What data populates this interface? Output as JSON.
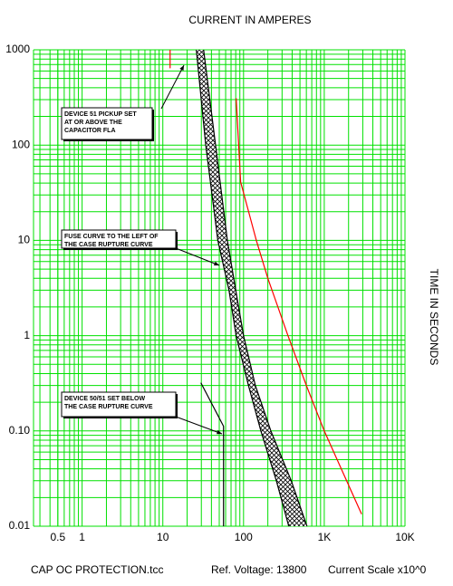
{
  "chart_data": {
    "type": "line",
    "title": "CURRENT IN AMPERES",
    "y_label": "TIME IN SECONDS",
    "xscale": "log",
    "yscale": "log",
    "grid": true,
    "grid_color": "#00e000",
    "xlim": [
      0.25,
      10000
    ],
    "ylim": [
      0.01,
      1000
    ],
    "xticks": [
      0.5,
      1,
      10,
      100,
      {
        "value": 1000,
        "label": "1K"
      },
      {
        "value": 10000,
        "label": "10K"
      }
    ],
    "yticks": [
      0.01,
      {
        "value": 0.1,
        "label": "0.10"
      },
      1,
      10,
      100,
      1000
    ],
    "x_minor_grid": [
      0.3,
      0.4,
      0.5,
      0.6,
      0.7,
      0.8,
      0.9,
      2,
      3,
      4,
      5,
      6,
      7,
      8,
      9,
      20,
      30,
      40,
      50,
      60,
      70,
      80,
      90,
      200,
      300,
      400,
      500,
      600,
      700,
      800,
      900,
      2000,
      3000,
      4000,
      5000,
      6000,
      7000,
      8000,
      9000
    ],
    "y_minor_grid": [
      0.02,
      0.03,
      0.04,
      0.05,
      0.06,
      0.07,
      0.08,
      0.09,
      0.2,
      0.3,
      0.4,
      0.5,
      0.6,
      0.7,
      0.8,
      0.9,
      2,
      3,
      4,
      5,
      6,
      7,
      8,
      9,
      20,
      30,
      40,
      50,
      60,
      70,
      80,
      90,
      200,
      300,
      400,
      500,
      600,
      700,
      800,
      900
    ],
    "band_between": [
      0,
      1
    ],
    "series": [
      {
        "color": "#000000",
        "x": [
          26,
          34,
          48,
          66,
          81,
          115,
          164,
          255,
          363
        ],
        "values": [
          1000,
          100,
          10,
          3,
          1,
          0.3,
          0.1,
          0.03,
          0.01
        ]
      },
      {
        "color": "#000000",
        "x": [
          32,
          45,
          63,
          80,
          100,
          140,
          218,
          390,
          610
        ],
        "values": [
          1000,
          100,
          10,
          3,
          1,
          0.3,
          0.1,
          0.03,
          0.01
        ]
      },
      {
        "color": "#ff0000",
        "x": [
          81,
          92,
          144,
          200,
          355,
          600,
          1000,
          2900
        ],
        "values": [
          310,
          41,
          10,
          4,
          1,
          0.3,
          0.1,
          0.0134
        ]
      },
      {
        "color": "#ff0000",
        "x": [
          12.3,
          12.3
        ],
        "values": [
          1000,
          640
        ]
      },
      {
        "color": "#000000",
        "x": [
          29.6,
          56.5,
          56.5
        ],
        "values": [
          0.32,
          0.112,
          0.01
        ]
      }
    ],
    "annotations": [
      {
        "lines": [
          "DEVICE 51 PICKUP SET",
          "AT OR ABOVE THE",
          "CAPACITOR FLA"
        ]
      },
      {
        "lines": [
          "FUSE CURVE TO THE LEFT OF",
          "THE CASE RUPTURE CURVE"
        ]
      },
      {
        "lines": [
          "DEVICE 50/51 SET BELOW",
          "THE CASE RUPTURE CURVE"
        ]
      }
    ],
    "footer": [
      "CAP OC PROTECTION.tcc",
      "Ref. Voltage: 13800",
      "Current Scale x10^0"
    ]
  }
}
